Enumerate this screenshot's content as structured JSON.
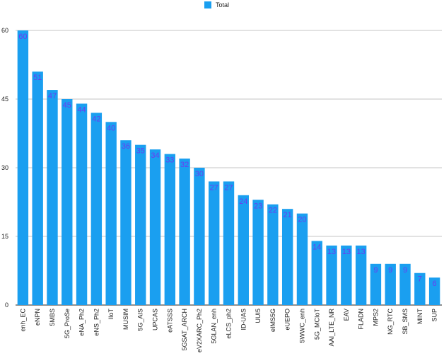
{
  "legend": {
    "label": "Total"
  },
  "colors": {
    "bar": "#1a9ff0",
    "value_label": "#6a3df0",
    "grid": "#b0b0b0",
    "axis": "#222222"
  },
  "chart_data": {
    "type": "bar",
    "categories": [
      "enh_EC",
      "eNPN",
      "5MBS",
      "5G_ProSe",
      "eNA_Ph2",
      "eNS_Ph2",
      "IIoT",
      "MUSIM",
      "5G_AIS",
      "UPCAS",
      "eATSSS",
      "5GSAT_ARCH",
      "eV2XARC_Ph2",
      "5GLAN_enh",
      "eLCS_ph2",
      "ID-UAS",
      "UUI5",
      "eIMS5G",
      "eUEPO",
      "5WWC_enh",
      "5G_MCIoT",
      "AAI_LTE_NR",
      "EAV",
      "FLADN",
      "MPS2",
      "NG_RTC",
      "SB_SMS",
      "MINT",
      "SUP"
    ],
    "series": [
      {
        "name": "Total",
        "values": [
          60,
          51,
          47,
          45,
          44,
          42,
          40,
          36,
          35,
          34,
          33,
          32,
          30,
          27,
          27,
          24,
          23,
          22,
          21,
          20,
          14,
          13,
          13,
          13,
          9,
          9,
          9,
          7,
          6
        ]
      }
    ],
    "yticks": [
      0,
      15,
      30,
      45,
      60
    ],
    "ylim": [
      0,
      60
    ],
    "grid": true,
    "legend_position": "top-center",
    "data_labels": true
  }
}
